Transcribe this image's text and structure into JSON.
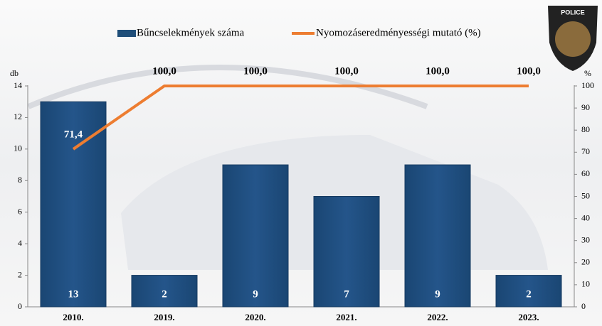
{
  "chart_data": {
    "type": "bar",
    "logo_text": "POLICE",
    "ylabel": "db",
    "y2label": "%",
    "categories": [
      "2010.",
      "2019.",
      "2020.",
      "2021.",
      "2022.",
      "2023."
    ],
    "series": [
      {
        "name": "Bűncselekmények száma",
        "type": "bar",
        "color": "#1f4e79",
        "values": [
          13,
          2,
          9,
          7,
          9,
          2
        ]
      },
      {
        "name": "Nyomozáseredményességi mutató (%)",
        "type": "line",
        "axis": "y2",
        "color": "#ed7d31",
        "values": [
          71.4,
          100,
          100,
          100,
          100,
          100
        ],
        "value_labels": [
          "71,4",
          "100,0",
          "100,0",
          "100,0",
          "100,0",
          "100,0"
        ]
      }
    ],
    "ylim": [
      0,
      14
    ],
    "yticks": [
      0,
      2,
      4,
      6,
      8,
      10,
      12,
      14
    ],
    "y2lim": [
      0,
      100
    ],
    "y2ticks": [
      0,
      10,
      20,
      30,
      40,
      50,
      60,
      70,
      80,
      90,
      100
    ]
  }
}
